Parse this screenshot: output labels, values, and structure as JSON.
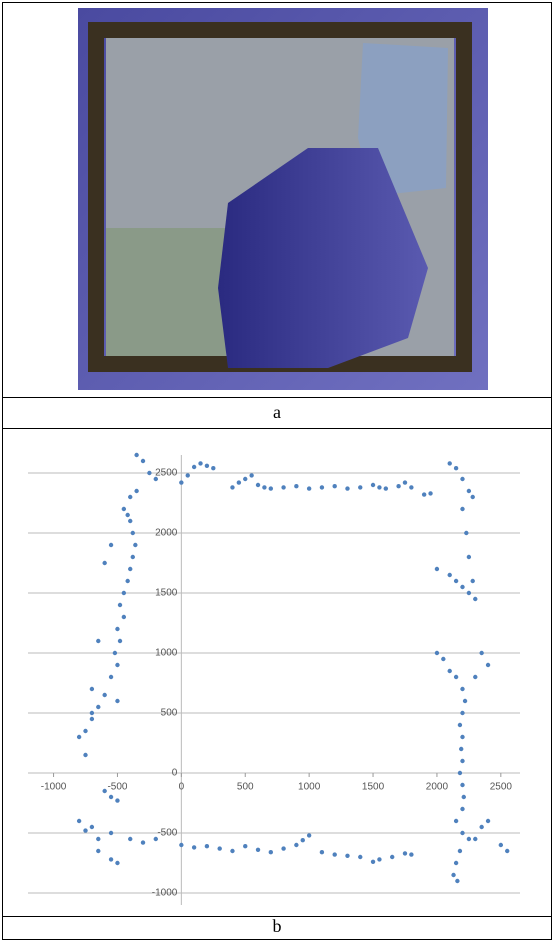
{
  "figure": {
    "labels": [
      "a",
      "b"
    ]
  },
  "chart_data": {
    "type": "scatter",
    "color": "#4f81bd",
    "grid": true,
    "xlim": [
      -1200,
      2650
    ],
    "ylim": [
      -1100,
      2650
    ],
    "xticks": [
      -1000,
      -500,
      0,
      500,
      1000,
      1500,
      2000,
      2500
    ],
    "yticks": [
      -1000,
      -500,
      0,
      500,
      1000,
      1500,
      2000,
      2500
    ],
    "x": [
      -350,
      -300,
      -250,
      -200,
      0,
      50,
      100,
      150,
      200,
      250,
      400,
      450,
      500,
      550,
      600,
      650,
      700,
      800,
      900,
      1000,
      1100,
      1200,
      1300,
      1400,
      1500,
      1550,
      1600,
      1700,
      1750,
      1800,
      1900,
      1950,
      2100,
      2150,
      2200,
      2250,
      2280,
      2200,
      2230,
      2250,
      2280,
      2200,
      2150,
      2100,
      2000,
      2300,
      2250,
      2000,
      2050,
      2100,
      2150,
      2200,
      2220,
      2200,
      2180,
      2200,
      2190,
      2200,
      2180,
      2200,
      2210,
      2200,
      2150,
      2200,
      2250,
      2180,
      2150,
      2130,
      2160,
      2300,
      2350,
      2400,
      2500,
      2550,
      2350,
      2400,
      2300,
      -650,
      -550,
      -400,
      -300,
      -200,
      0,
      100,
      200,
      300,
      400,
      500,
      600,
      700,
      800,
      900,
      950,
      1000,
      1100,
      1200,
      1300,
      1400,
      1500,
      1550,
      1650,
      1750,
      1800,
      -600,
      -550,
      -500,
      -800,
      -750,
      -700,
      -650,
      -550,
      -500,
      -750,
      -700,
      -650,
      -600,
      -700,
      -550,
      -500,
      -520,
      -480,
      -500,
      -450,
      -480,
      -450,
      -420,
      -400,
      -380,
      -360,
      -380,
      -400,
      -420,
      -450,
      -400,
      -350,
      -550,
      -600,
      -650,
      -700,
      -800,
      -750,
      -500
    ],
    "values": [
      2650,
      2600,
      2500,
      2450,
      2420,
      2480,
      2550,
      2580,
      2560,
      2540,
      2380,
      2420,
      2450,
      2480,
      2400,
      2380,
      2370,
      2380,
      2390,
      2370,
      2380,
      2390,
      2370,
      2380,
      2400,
      2380,
      2370,
      2390,
      2420,
      2380,
      2320,
      2330,
      2580,
      2540,
      2450,
      2350,
      2300,
      2200,
      2000,
      1800,
      1600,
      1550,
      1600,
      1650,
      1700,
      1450,
      1500,
      1000,
      950,
      850,
      800,
      700,
      600,
      500,
      400,
      300,
      200,
      100,
      0,
      -100,
      -200,
      -300,
      -400,
      -500,
      -550,
      -650,
      -750,
      -850,
      -900,
      -550,
      -450,
      -400,
      -600,
      -650,
      1000,
      900,
      800,
      -550,
      -500,
      -550,
      -580,
      -550,
      -600,
      -620,
      -610,
      -630,
      -650,
      -610,
      -640,
      -660,
      -630,
      -600,
      -560,
      -520,
      -660,
      -680,
      -690,
      -700,
      -740,
      -720,
      -700,
      -670,
      -680,
      -150,
      -200,
      -230,
      -400,
      -480,
      -450,
      -650,
      -720,
      -750,
      350,
      450,
      550,
      650,
      700,
      800,
      900,
      1000,
      1100,
      1200,
      1300,
      1400,
      1500,
      1600,
      1700,
      1800,
      1900,
      2000,
      2100,
      2150,
      2200,
      2300,
      2350,
      1900,
      1750,
      1100,
      500,
      300,
      150,
      600
    ]
  }
}
